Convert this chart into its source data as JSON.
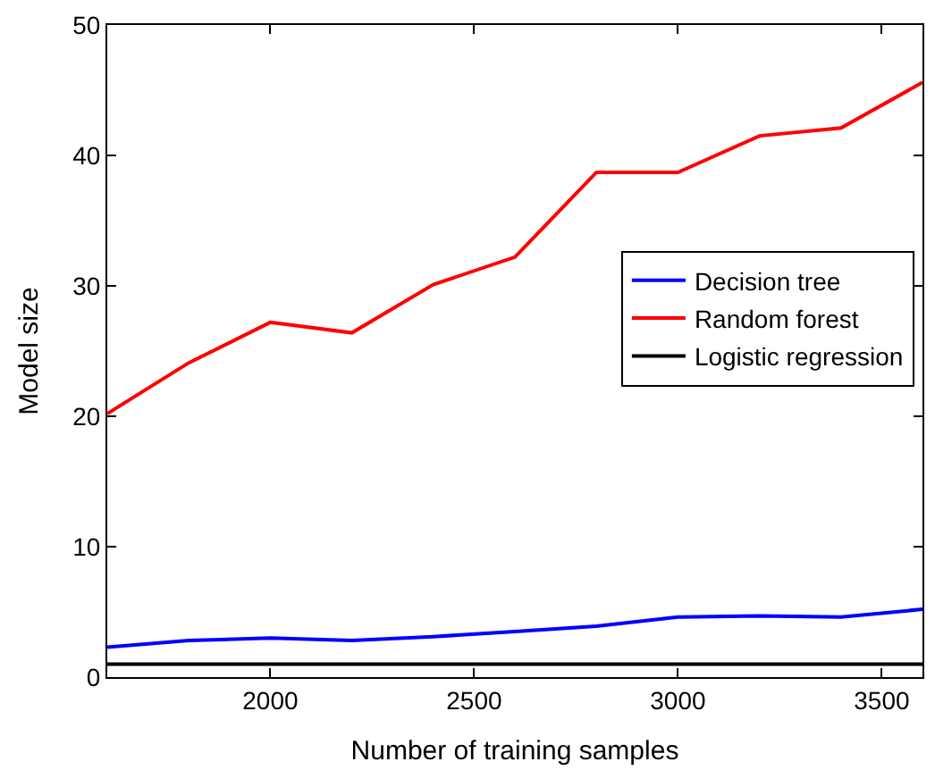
{
  "chart_data": {
    "type": "line",
    "xlabel": "Number of training samples",
    "ylabel": "Model size",
    "x": [
      1600,
      1800,
      2000,
      2200,
      2400,
      2600,
      2800,
      3000,
      3200,
      3400,
      3600
    ],
    "series": [
      {
        "name": "Decision tree",
        "color": "#0000ff",
        "values": [
          2.3,
          2.8,
          3.0,
          2.8,
          3.1,
          3.5,
          3.9,
          4.6,
          4.7,
          4.6,
          5.2
        ]
      },
      {
        "name": "Random forest",
        "color": "#ff0000",
        "values": [
          20.2,
          24.1,
          27.2,
          26.4,
          30.1,
          32.2,
          38.7,
          38.7,
          41.5,
          42.1,
          45.6
        ]
      },
      {
        "name": "Logistic regression",
        "color": "#000000",
        "values": [
          1,
          1,
          1,
          1,
          1,
          1,
          1,
          1,
          1,
          1,
          1
        ]
      }
    ],
    "xlim": [
      1600,
      3600
    ],
    "xticks": [
      2000,
      2500,
      3000,
      3500
    ],
    "ylim": [
      0,
      50
    ],
    "yticks": [
      0,
      10,
      20,
      30,
      40,
      50
    ],
    "legend": "right",
    "marker": "none",
    "line_style": "solid"
  }
}
